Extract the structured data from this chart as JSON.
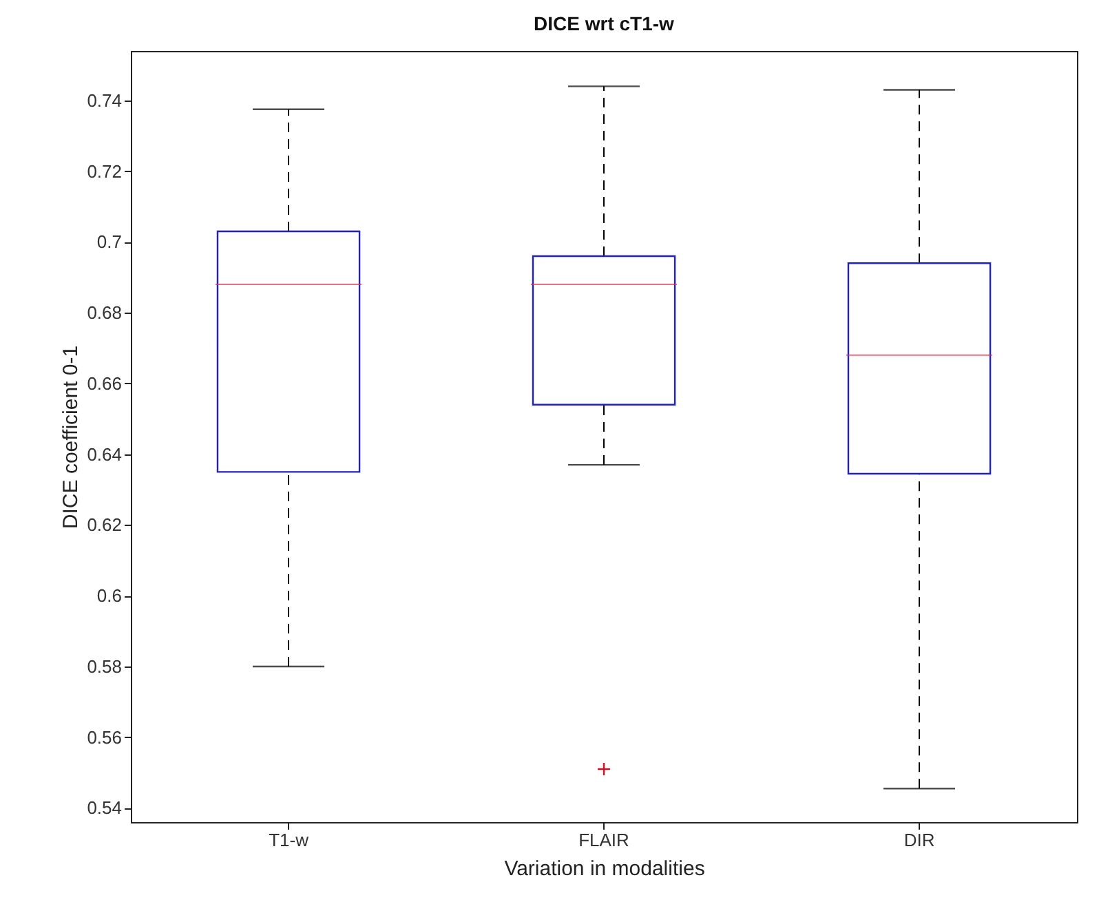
{
  "chart_data": {
    "type": "box",
    "title": "DICE wrt cT1-w",
    "xlabel": "Variation in modalities",
    "ylabel": "DICE coefficient 0-1",
    "categories": [
      "T1-w",
      "FLAIR",
      "DIR"
    ],
    "series": [
      {
        "color": "#2020c8",
        "boxes": [
          {
            "low": 0.58,
            "q1": 0.635,
            "median": 0.688,
            "q3": 0.703,
            "high": 0.7375
          },
          {
            "low": 0.637,
            "q1": 0.654,
            "median": 0.688,
            "q3": 0.696,
            "high": 0.744,
            "outliers": [
              0.551
            ]
          },
          {
            "low": 0.5455,
            "q1": 0.6345,
            "median": 0.668,
            "q3": 0.694,
            "high": 0.743
          }
        ]
      }
    ],
    "ylim": [
      0.536,
      0.754
    ],
    "yticks": [
      0.54,
      0.56,
      0.58,
      0.6,
      0.62,
      0.64,
      0.66,
      0.68,
      0.7,
      0.72,
      0.74
    ],
    "grid": false,
    "marker": "cross"
  }
}
